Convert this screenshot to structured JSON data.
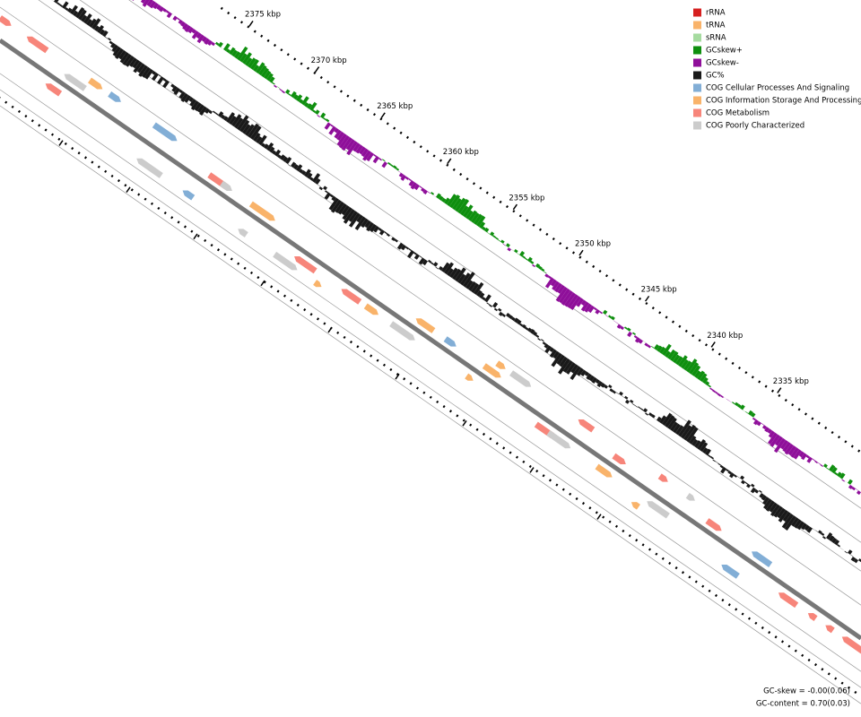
{
  "ticks": [
    "2375 kbp",
    "2370 kbp",
    "2365 kbp",
    "2360 kbp",
    "2355 kbp",
    "2350 kbp",
    "2345 kbp",
    "2340 kbp",
    "2335 kbp"
  ],
  "legend": [
    {
      "label": "rRNA",
      "color": "#d62020"
    },
    {
      "label": "tRNA",
      "color": "#f9b36a"
    },
    {
      "label": "sRNA",
      "color": "#a6dba0"
    },
    {
      "label": "GCskew+",
      "color": "#0f8f0f"
    },
    {
      "label": "GCskew-",
      "color": "#8f0f9a"
    },
    {
      "label": "GC%",
      "color": "#1a1a1a"
    },
    {
      "label": "COG Cellular Processes And Signaling",
      "color": "#82aed6"
    },
    {
      "label": "COG Information Storage And Processing",
      "color": "#f9b36a"
    },
    {
      "label": "COG Metabolism",
      "color": "#f7857a"
    },
    {
      "label": "COG Poorly Characterized",
      "color": "#cccccc"
    }
  ],
  "footer": [
    "GC-skew = -0.00(0.06)",
    "GC-content = 0.70(0.03)"
  ]
}
